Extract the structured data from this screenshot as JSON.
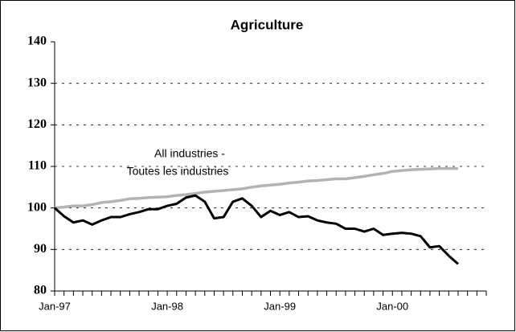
{
  "chart_data": {
    "type": "line",
    "title": "Agriculture",
    "categories": [
      "Jan-97",
      null,
      null,
      null,
      null,
      null,
      null,
      null,
      null,
      null,
      null,
      null,
      "Jan-98",
      null,
      null,
      null,
      null,
      null,
      null,
      null,
      null,
      null,
      null,
      null,
      "Jan-99",
      null,
      null,
      null,
      null,
      null,
      null,
      null,
      null,
      null,
      null,
      null,
      "Jan-00",
      null,
      null,
      null,
      null,
      null,
      null,
      null,
      null,
      null,
      null
    ],
    "series": [
      {
        "color": "#000000",
        "values": [
          100,
          98,
          96.5,
          97,
          96,
          97,
          97.8,
          97.8,
          98.5,
          99,
          99.7,
          99.7,
          100.5,
          101,
          102.5,
          103,
          101.5,
          97.5,
          97.8,
          101.5,
          102.3,
          100.5,
          97.8,
          99.3,
          98.3,
          99,
          97.8,
          98,
          97,
          96.5,
          96.2,
          95,
          95,
          94.3,
          95,
          93.5,
          93.8,
          94,
          93.8,
          93.2,
          90.5,
          90.8,
          88.5,
          86.5,
          null,
          null,
          null
        ]
      },
      {
        "color": "#b3b3b3",
        "name_lines": [
          "All industries -",
          "Toutes les industries"
        ],
        "values": [
          100,
          100.2,
          100.5,
          100.5,
          100.8,
          101.3,
          101.5,
          101.8,
          102.2,
          102.3,
          102.5,
          102.6,
          102.7,
          103,
          103.2,
          103.5,
          103.8,
          104,
          104.2,
          104.4,
          104.6,
          105,
          105.3,
          105.5,
          105.7,
          106,
          106.2,
          106.5,
          106.6,
          106.8,
          107,
          107,
          107.3,
          107.6,
          108,
          108.3,
          108.8,
          109,
          109.2,
          109.3,
          109.4,
          109.5,
          109.5,
          109.5,
          null,
          null,
          null
        ]
      }
    ],
    "ylim": [
      80,
      140
    ],
    "yticks": [
      80,
      90,
      100,
      110,
      120,
      130,
      140
    ],
    "grid": true
  }
}
